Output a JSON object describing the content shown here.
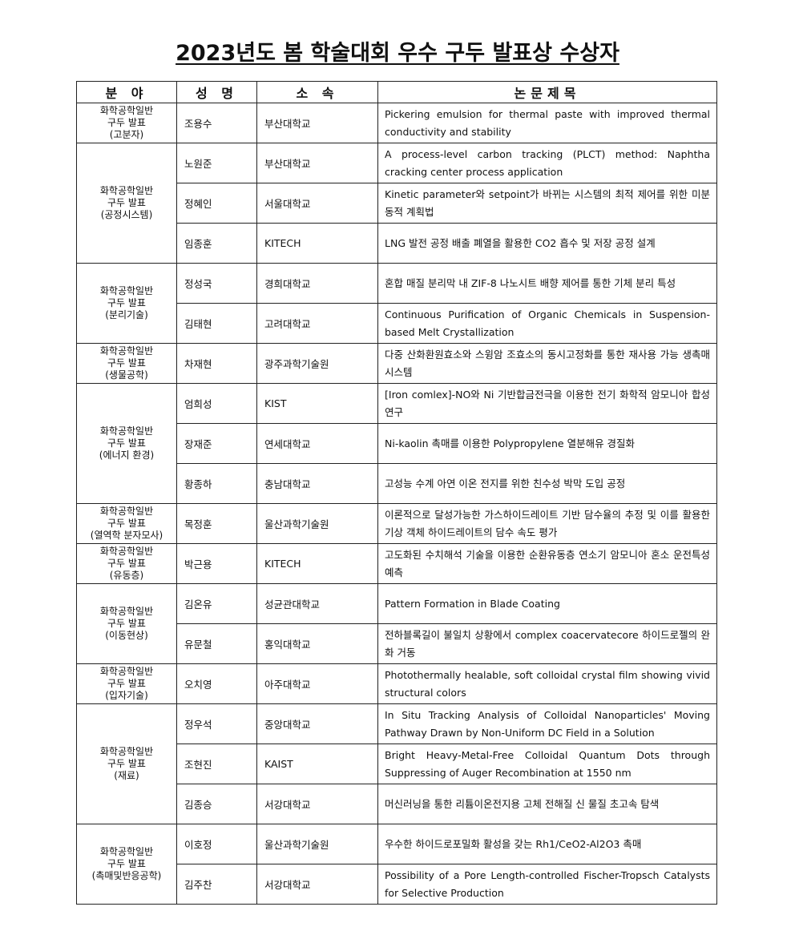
{
  "title": "2023년도 봄 학술대회 우수 구두 발표상 수상자",
  "table": {
    "header": [
      "분 야",
      "성 명",
      "소 속",
      "논문제목"
    ],
    "groups": [
      {
        "field": [
          "화학공학일반",
          "구두 발표",
          "(고분자)"
        ],
        "rows": [
          [
            "조용수",
            "부산대학교",
            "Pickering emulsion for thermal paste with improved thermal conductivity and stability"
          ]
        ]
      },
      {
        "field": [
          "화학공학일반",
          "구두 발표",
          "(공정시스템)"
        ],
        "rows": [
          [
            "노원준",
            "부산대학교",
            "A process-level carbon tracking (PLCT) method: Naphtha cracking center process application"
          ],
          [
            "정혜인",
            "서울대학교",
            "Kinetic parameter와 setpoint가 바뀌는 시스템의 최적 제어를 위한 미분 동적 계획법"
          ],
          [
            "임종훈",
            "KITECH",
            "LNG 발전 공정 배출 폐열을 활용한 CO2 흡수 및 저장 공정 설계"
          ]
        ]
      },
      {
        "field": [
          "화학공학일반",
          "구두 발표",
          "(분리기술)"
        ],
        "rows": [
          [
            "정성국",
            "경희대학교",
            "혼합 매질 분리막 내 ZIF-8 나노시트 배향 제어를 통한 기체 분리 특성"
          ],
          [
            "김태현",
            "고려대학교",
            "Continuous Purification of Organic Chemicals in Suspension-based Melt Crystallization"
          ]
        ]
      },
      {
        "field": [
          "화학공학일반",
          "구두 발표",
          "(생물공학)"
        ],
        "rows": [
          [
            "차재현",
            "광주과학기술원",
            "다중 산화환원효소와 스윙암 조효소의 동시고정화를 통한 재사용 가능 생촉매 시스템"
          ]
        ]
      },
      {
        "field": [
          "화학공학일반",
          "구두 발표",
          "(에너지 환경)"
        ],
        "rows": [
          [
            "엄희성",
            "KIST",
            "[Iron comlex]-NO와 Ni 기반합금전극을 이용한 전기 화학적 암모니아 합성 연구"
          ],
          [
            "장재준",
            "연세대학교",
            "Ni-kaolin 촉매를 이용한 Polypropylene 열분해유 경질화"
          ],
          [
            "황종하",
            "충남대학교",
            "고성능 수계 아연 이온 전지를 위한 친수성 박막 도입 공정"
          ]
        ]
      },
      {
        "field": [
          "화학공학일반",
          "구두 발표",
          "(열역학 분자모사)"
        ],
        "rows": [
          [
            "목정훈",
            "울산과학기술원",
            "이론적으로 달성가능한 가스하이드레이트 기반 담수율의 추정 및 이를 활용한 기상 객체 하이드레이트의 담수 속도 평가"
          ]
        ]
      },
      {
        "field": [
          "화학공학일반",
          "구두 발표",
          "(유동층)"
        ],
        "rows": [
          [
            "박근용",
            "KITECH",
            "고도화된 수치해석 기술을 이용한 순환유동층 연소기 암모니아 혼소 운전특성 예측"
          ]
        ]
      },
      {
        "field": [
          "화학공학일반",
          "구두 발표",
          "(이동현상)"
        ],
        "rows": [
          [
            "김온유",
            "성균관대학교",
            "Pattern Formation in Blade Coating"
          ],
          [
            "유문철",
            "홍익대학교",
            "전하블록길이 불일치 상황에서 complex coacervatecore 하이드로젤의 완화 거동"
          ]
        ]
      },
      {
        "field": [
          "화학공학일반",
          "구두 발표",
          "(입자기술)"
        ],
        "rows": [
          [
            "오치영",
            "아주대학교",
            "Photothermally healable, soft colloidal crystal film showing vivid structural colors"
          ]
        ]
      },
      {
        "field": [
          "화학공학일반",
          "구두 발표",
          "(재료)"
        ],
        "rows": [
          [
            "정우석",
            "중앙대학교",
            "In Situ Tracking Analysis of Colloidal Nanoparticles' Moving Pathway Drawn by Non-Uniform DC Field in a Solution"
          ],
          [
            "조현진",
            "KAIST",
            "Bright Heavy-Metal-Free Colloidal Quantum Dots through Suppressing of Auger Recombination at 1550 nm"
          ],
          [
            "김종승",
            "서강대학교",
            "머신러닝을 통한 리튬이온전지용 고체 전해질 신 물질 초고속 탐색"
          ]
        ]
      },
      {
        "field": [
          "화학공학일반",
          "구두 발표",
          "(촉매및반응공학)"
        ],
        "rows": [
          [
            "이호정",
            "울산과학기술원",
            "우수한 하이드로포밀화 활성을 갖는 Rh1/CeO2-Al2O3 촉매"
          ],
          [
            "김주찬",
            "서강대학교",
            "Possibility of a Pore Length-controlled Fischer-Tropsch Catalysts for Selective Production"
          ]
        ]
      }
    ]
  }
}
